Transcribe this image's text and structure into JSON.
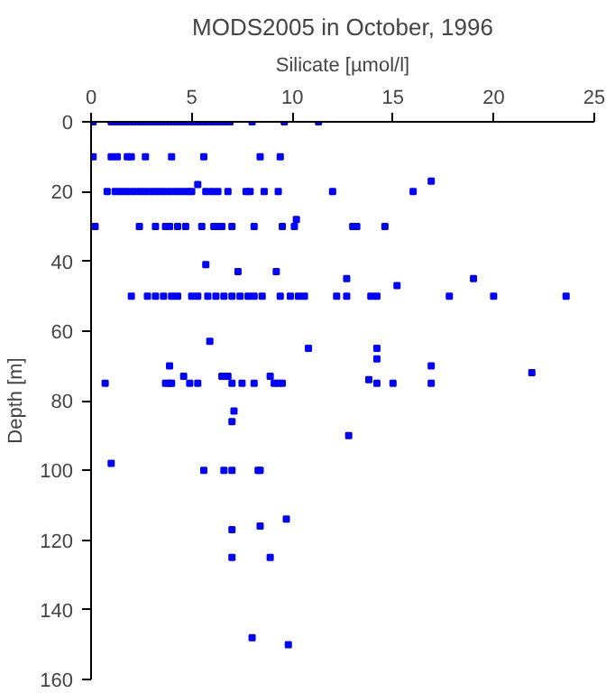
{
  "chart_data": {
    "type": "scatter",
    "title": "MODS2005 in October, 1996",
    "xlabel": "Silicate [µmol/l]",
    "ylabel": "Depth [m]",
    "xlim": [
      0,
      25
    ],
    "xticks": [
      0,
      5,
      10,
      15,
      20,
      25
    ],
    "ylim": [
      160,
      0
    ],
    "yticks": [
      0,
      20,
      40,
      60,
      80,
      100,
      120,
      140,
      160
    ],
    "grid": false,
    "marker": "square",
    "series": [
      {
        "color": "#0000ff",
        "x": [
          0.1,
          1,
          1.2,
          1.5,
          1.8,
          2.1,
          2.4,
          2.7,
          3,
          3.3,
          3.6,
          3.9,
          4.2,
          4.5,
          4.8,
          5.1,
          5.4,
          5.7,
          6,
          6.3,
          6.6,
          6.9,
          8.0,
          9.6,
          11.3,
          0.1,
          1.0,
          1.3,
          1.8,
          2.0,
          2.7,
          4.0,
          5.6,
          8.4,
          9.4,
          0.8,
          1.2,
          1.5,
          1.8,
          2.1,
          2.4,
          2.7,
          3.0,
          3.3,
          3.6,
          3.9,
          4.2,
          4.5,
          4.8,
          5.0,
          5.3,
          5.7,
          6.0,
          6.3,
          6.8,
          7.7,
          7.9,
          8.6,
          9.3,
          12.0,
          16.0,
          16.9,
          0.2,
          2.4,
          3.2,
          3.7,
          3.9,
          4.3,
          4.7,
          5.5,
          6.1,
          6.3,
          6.5,
          7.0,
          8.1,
          9.5,
          10.1,
          10.2,
          13.0,
          13.2,
          14.6,
          2.0,
          2.8,
          3.2,
          3.6,
          4.0,
          4.3,
          5.0,
          5.3,
          5.8,
          6.2,
          6.6,
          7.0,
          7.4,
          7.8,
          8.1,
          8.5,
          9.4,
          9.9,
          10.3,
          10.6,
          12.2,
          12.7,
          13.9,
          14.2,
          17.8,
          20.0,
          23.6,
          5.7,
          7.3,
          9.2,
          12.7,
          15.2,
          19.0,
          5.9,
          10.8,
          3.9,
          4.6,
          6.5,
          6.8,
          8.9,
          13.8,
          14.2,
          14.2,
          16.9,
          21.9,
          0.7,
          3.7,
          3.9,
          4.0,
          4.9,
          5.3,
          7.0,
          7.5,
          8.1,
          9.1,
          9.3,
          9.5,
          14.2,
          15.0,
          16.9,
          7.1,
          7.0,
          12.8,
          1.0,
          5.6,
          6.6,
          7.0,
          8.3,
          8.4,
          9.7,
          7.0,
          8.4,
          7.0,
          8.9,
          8.0,
          9.8
        ],
        "values": [
          0,
          0,
          0,
          0,
          0,
          0,
          0,
          0,
          0,
          0,
          0,
          0,
          0,
          0,
          0,
          0,
          0,
          0,
          0,
          0,
          0,
          0,
          0,
          0,
          0,
          10,
          10,
          10,
          10,
          10,
          10,
          10,
          10,
          10,
          10,
          20,
          20,
          20,
          20,
          20,
          20,
          20,
          20,
          20,
          20,
          20,
          20,
          20,
          20,
          20,
          18,
          20,
          20,
          20,
          20,
          20,
          20,
          20,
          20,
          20,
          20,
          17,
          30,
          30,
          30,
          30,
          30,
          30,
          30,
          30,
          30,
          30,
          30,
          30,
          30,
          30,
          30,
          28,
          30,
          30,
          30,
          50,
          50,
          50,
          50,
          50,
          50,
          50,
          50,
          50,
          50,
          50,
          50,
          50,
          50,
          50,
          50,
          50,
          50,
          50,
          50,
          50,
          50,
          50,
          50,
          50,
          50,
          50,
          41,
          43,
          43,
          45,
          47,
          45,
          63,
          65,
          70,
          73,
          73,
          73,
          73,
          74,
          68,
          65,
          70,
          72,
          75,
          75,
          75,
          75,
          75,
          75,
          75,
          75,
          75,
          75,
          75,
          75,
          75,
          75,
          75,
          83,
          86,
          90,
          98,
          100,
          100,
          100,
          100,
          100,
          114,
          117,
          116,
          125,
          125,
          148,
          150
        ]
      }
    ]
  }
}
